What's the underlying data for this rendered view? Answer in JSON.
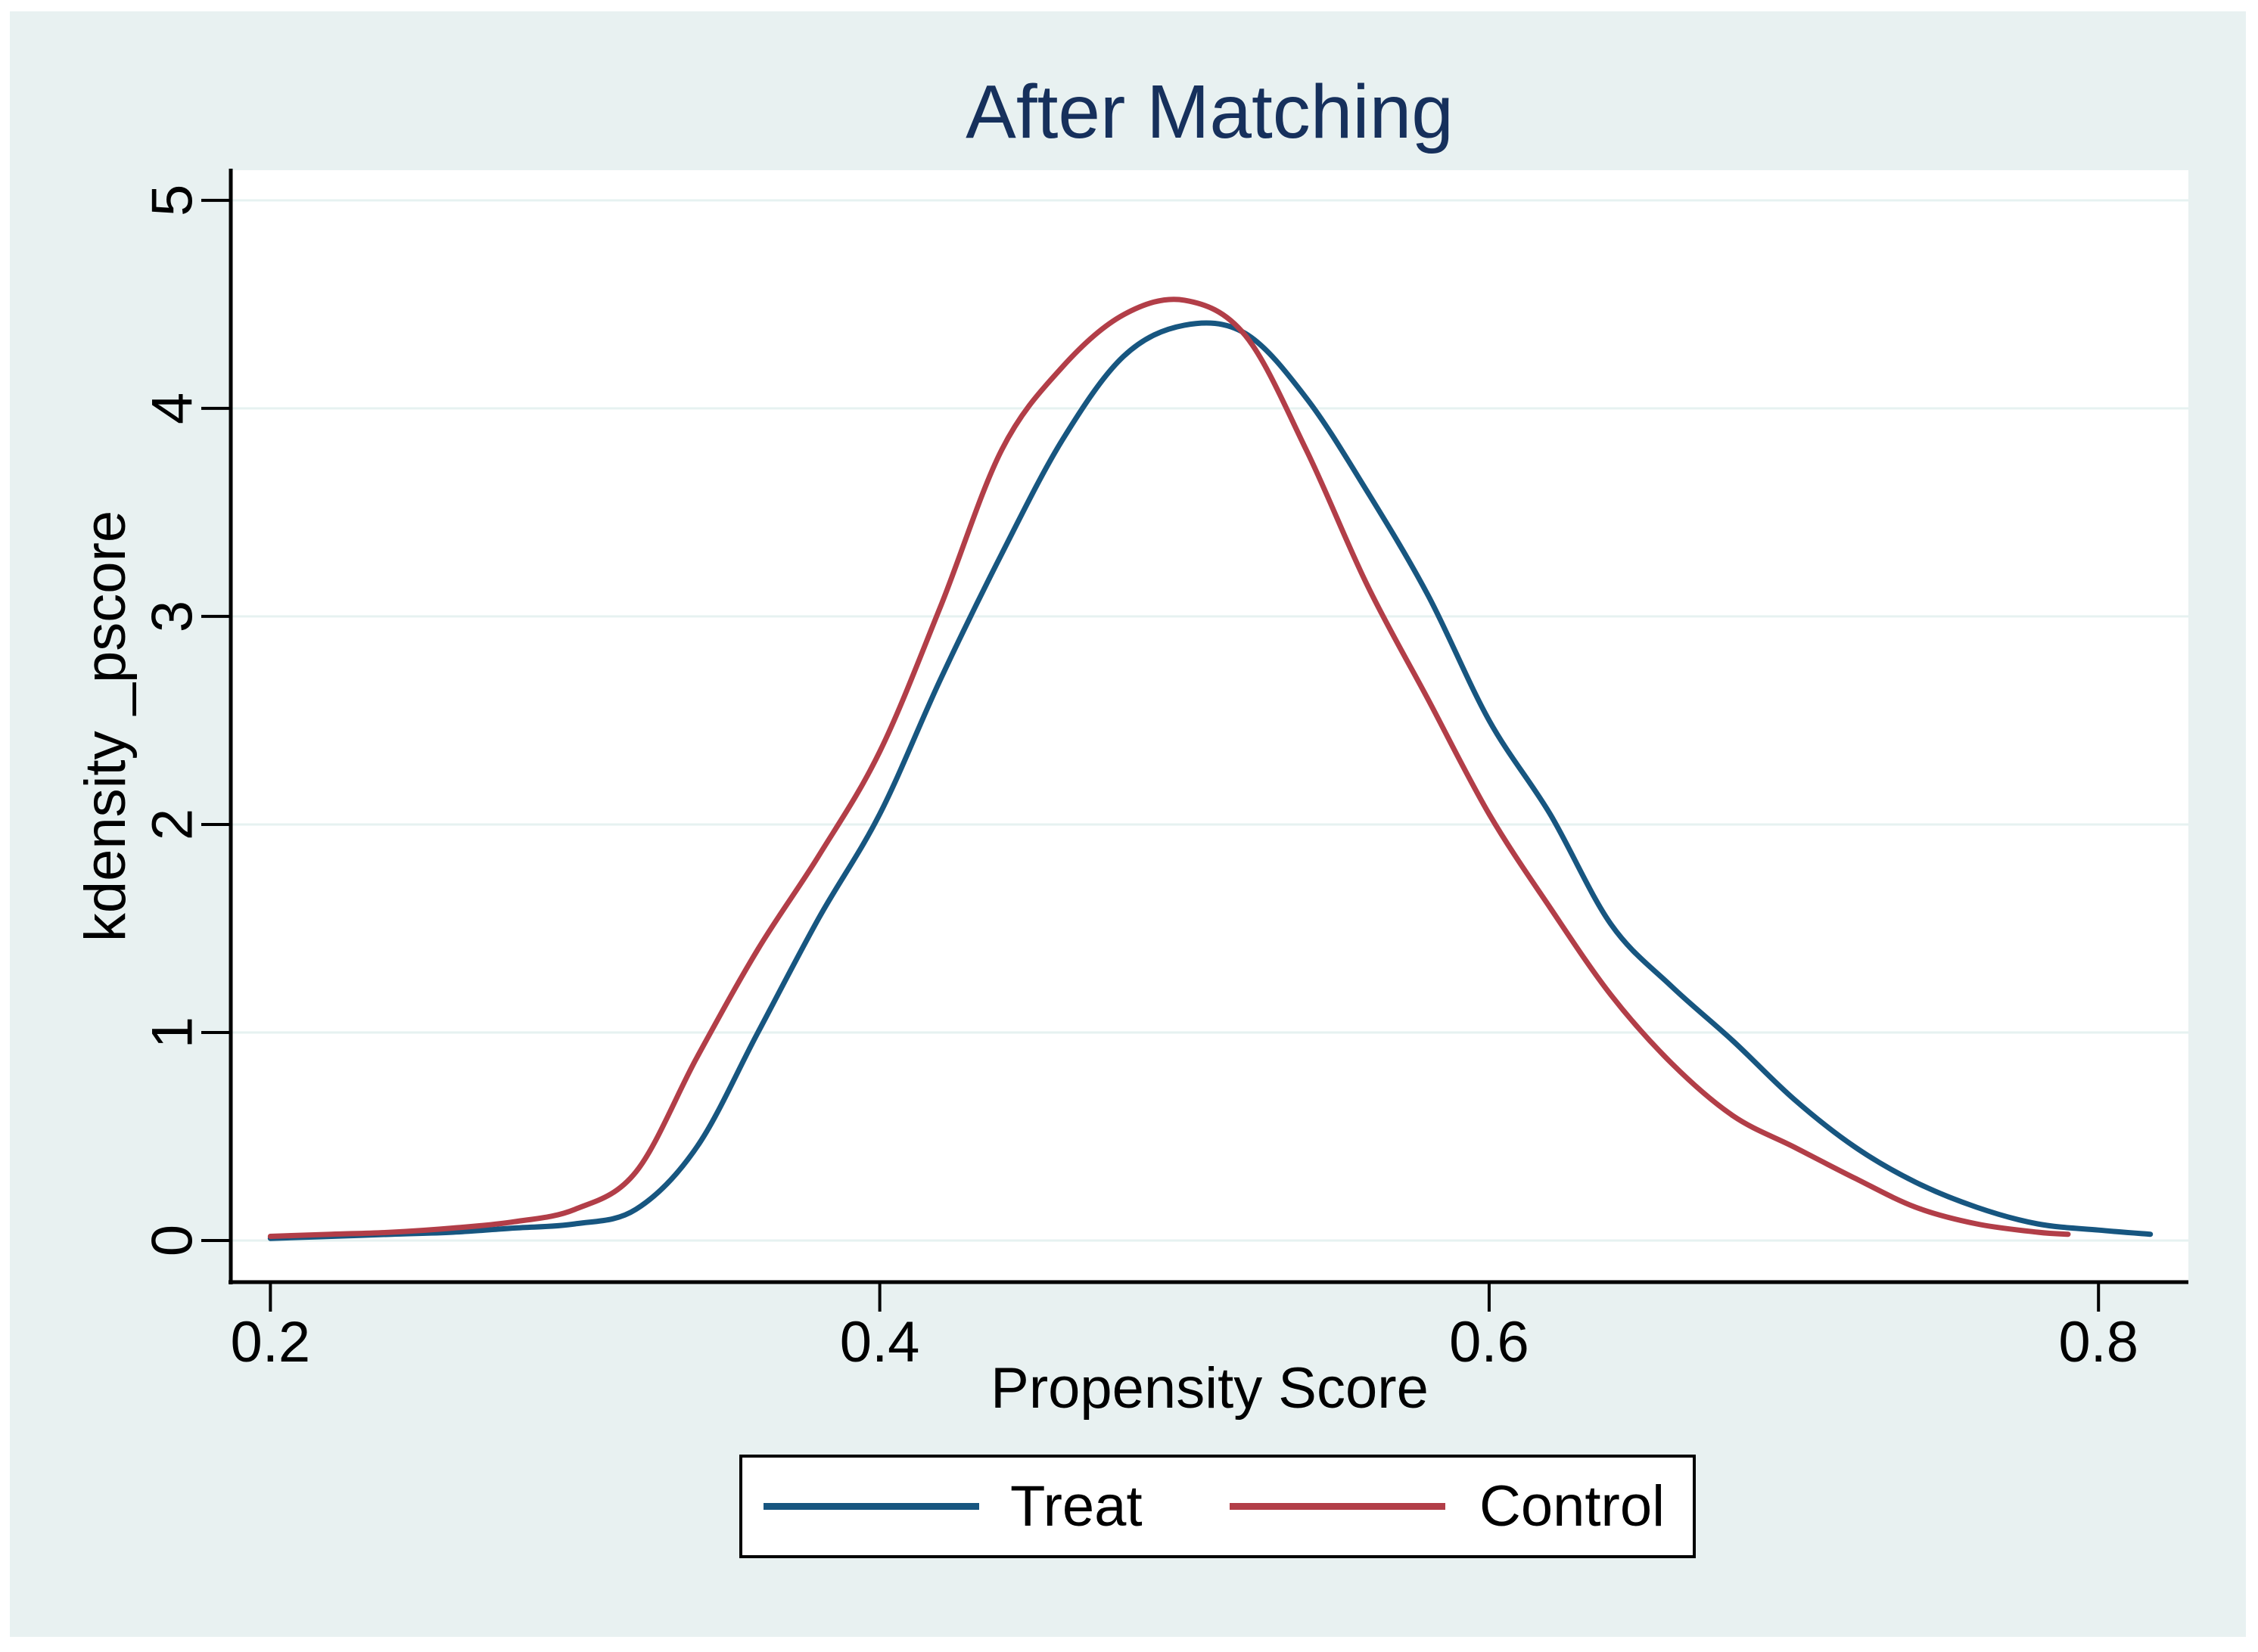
{
  "figure": {
    "background": "#ffffff",
    "canvas_color": "#e8f1f1",
    "plot_color": "#ffffff",
    "grid_color": "#e6f2f1",
    "axis_color": "#000000",
    "title_color": "#16305c"
  },
  "chart_data": {
    "type": "line",
    "title": "After Matching",
    "xlabel": "Propensity Score",
    "ylabel": "kdensity _pscore",
    "x_ticks": [
      0.2,
      0.4,
      0.6,
      0.8
    ],
    "x_tick_labels": [
      "0.2",
      "0.4",
      "0.6",
      "0.8"
    ],
    "y_ticks": [
      0,
      1,
      2,
      3,
      4,
      5
    ],
    "y_tick_labels": [
      "0",
      "1",
      "2",
      "3",
      "4",
      "5"
    ],
    "xlim": [
      0.187,
      0.8295
    ],
    "ylim": [
      -0.2,
      5.145
    ],
    "grid": "horizontal-only",
    "legend_position": "bottom-center",
    "series": [
      {
        "name": "Treat",
        "color": "#175680",
        "x": [
          0.2,
          0.22,
          0.24,
          0.26,
          0.28,
          0.3,
          0.32,
          0.34,
          0.36,
          0.38,
          0.4,
          0.42,
          0.44,
          0.46,
          0.48,
          0.5,
          0.52,
          0.54,
          0.56,
          0.58,
          0.6,
          0.62,
          0.64,
          0.66,
          0.68,
          0.7,
          0.72,
          0.74,
          0.76,
          0.78,
          0.8,
          0.817
        ],
        "y": [
          0.01,
          0.02,
          0.03,
          0.04,
          0.06,
          0.08,
          0.15,
          0.45,
          1.0,
          1.55,
          2.05,
          2.7,
          3.3,
          3.85,
          4.25,
          4.4,
          4.36,
          4.05,
          3.6,
          3.1,
          2.5,
          2.05,
          1.52,
          1.22,
          0.96,
          0.68,
          0.45,
          0.28,
          0.16,
          0.08,
          0.05,
          0.03
        ]
      },
      {
        "name": "Control",
        "color": "#b23e48",
        "x": [
          0.2,
          0.22,
          0.24,
          0.26,
          0.28,
          0.3,
          0.32,
          0.34,
          0.36,
          0.38,
          0.4,
          0.42,
          0.44,
          0.46,
          0.48,
          0.5,
          0.52,
          0.54,
          0.56,
          0.58,
          0.6,
          0.62,
          0.64,
          0.66,
          0.68,
          0.7,
          0.72,
          0.74,
          0.76,
          0.78,
          0.79
        ],
        "y": [
          0.02,
          0.03,
          0.04,
          0.06,
          0.09,
          0.15,
          0.33,
          0.88,
          1.4,
          1.85,
          2.35,
          3.05,
          3.8,
          4.2,
          4.45,
          4.52,
          4.35,
          3.8,
          3.15,
          2.6,
          2.05,
          1.6,
          1.18,
          0.85,
          0.6,
          0.45,
          0.3,
          0.16,
          0.08,
          0.04,
          0.03
        ]
      }
    ]
  },
  "legend": {
    "treat_label": "Treat",
    "control_label": "Control"
  }
}
